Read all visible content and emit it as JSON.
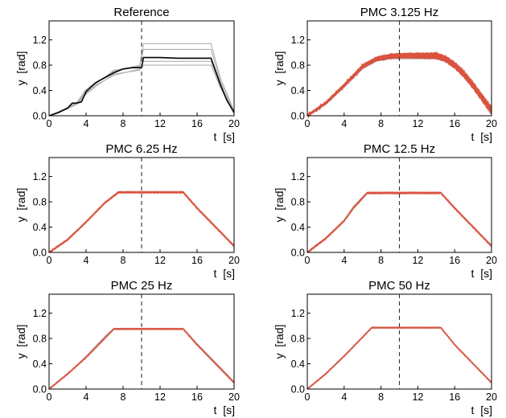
{
  "chart_data": [
    {
      "type": "line",
      "title": "Reference",
      "xlabel": "t  [s]",
      "ylabel": "y  [rad]",
      "xlim": [
        0,
        20
      ],
      "ylim": [
        0,
        1.5
      ],
      "xticks": [
        "0",
        "4",
        "8",
        "12",
        "16",
        "20"
      ],
      "yticks": [
        "0.0",
        "0.4",
        "0.8",
        "1.2"
      ],
      "vline_x": 10,
      "grid": false,
      "series": [
        {
          "role": "main",
          "color": "#000000",
          "x": [
            0,
            1,
            2,
            2.5,
            3,
            3.5,
            4,
            4.5,
            5,
            6,
            7,
            8,
            9,
            9.8,
            10,
            10.2,
            12,
            14,
            16,
            17.5,
            18.5,
            19.2,
            20
          ],
          "y": [
            0,
            0.05,
            0.12,
            0.2,
            0.2,
            0.22,
            0.38,
            0.45,
            0.52,
            0.6,
            0.68,
            0.74,
            0.76,
            0.76,
            0.76,
            0.92,
            0.92,
            0.91,
            0.91,
            0.91,
            0.5,
            0.25,
            0.05
          ]
        },
        {
          "role": "background",
          "color": "#b0b0b0",
          "x": [
            0,
            2,
            3,
            4,
            5,
            7,
            9.8,
            10.2,
            17.5,
            18.5,
            20
          ],
          "y": [
            0,
            0.13,
            0.21,
            0.42,
            0.52,
            0.7,
            0.8,
            1.14,
            1.14,
            0.6,
            0.08
          ]
        },
        {
          "role": "background",
          "color": "#b0b0b0",
          "x": [
            0,
            2,
            3,
            4,
            5,
            7,
            9.8,
            10.2,
            17.5,
            18.5,
            20
          ],
          "y": [
            0,
            0.11,
            0.18,
            0.34,
            0.46,
            0.66,
            0.72,
            0.8,
            0.8,
            0.45,
            0.04
          ]
        },
        {
          "role": "background",
          "color": "#b0b0b0",
          "x": [
            0,
            2,
            3,
            4,
            5,
            7,
            9.8,
            10.2,
            17.5,
            18.5,
            20
          ],
          "y": [
            0,
            0.12,
            0.2,
            0.4,
            0.5,
            0.72,
            0.78,
            1.05,
            1.05,
            0.55,
            0.06
          ]
        },
        {
          "role": "background",
          "color": "#b0b0b0",
          "x": [
            0,
            2,
            3,
            4,
            5,
            7,
            9.8,
            10.2,
            17.5,
            18.5,
            20
          ],
          "y": [
            0,
            0.12,
            0.19,
            0.36,
            0.48,
            0.64,
            0.74,
            0.86,
            0.86,
            0.48,
            0.05
          ]
        }
      ]
    },
    {
      "type": "line",
      "title": "PMC 3.125 Hz",
      "xlabel": "t  [s]",
      "ylabel": "y  [rad]",
      "xlim": [
        0,
        20
      ],
      "ylim": [
        0,
        1.5
      ],
      "xticks": [
        "0",
        "4",
        "8",
        "12",
        "16",
        "20"
      ],
      "yticks": [
        "0.0",
        "0.4",
        "0.8",
        "1.2"
      ],
      "vline_x": 10,
      "grid": false,
      "series": [
        {
          "role": "main",
          "color": "#d9533f",
          "x": [
            0,
            2,
            4,
            6,
            7.5,
            9,
            10,
            12,
            14,
            15,
            16,
            17,
            18,
            19,
            20
          ],
          "y": [
            0,
            0.2,
            0.48,
            0.78,
            0.9,
            0.94,
            0.95,
            0.95,
            0.95,
            0.9,
            0.8,
            0.66,
            0.48,
            0.28,
            0.08
          ],
          "oscillation": [
            0.02,
            0.07
          ]
        },
        {
          "role": "background",
          "color": "#b0b0b0",
          "x": [
            0,
            2,
            4,
            6,
            7.5,
            9,
            10,
            12,
            14,
            15,
            16,
            17,
            18,
            19,
            20
          ],
          "y": [
            0,
            0.18,
            0.45,
            0.74,
            0.86,
            0.9,
            0.9,
            0.9,
            0.9,
            0.86,
            0.76,
            0.63,
            0.46,
            0.26,
            0.06
          ]
        }
      ]
    },
    {
      "type": "line",
      "title": "PMC 6.25 Hz",
      "xlabel": "t  [s]",
      "ylabel": "y  [rad]",
      "xlim": [
        0,
        20
      ],
      "ylim": [
        0,
        1.5
      ],
      "xticks": [
        "0",
        "4",
        "8",
        "12",
        "16",
        "20"
      ],
      "yticks": [
        "0.0",
        "0.4",
        "0.8",
        "1.2"
      ],
      "vline_x": 10,
      "grid": false,
      "series": [
        {
          "role": "main",
          "color": "#d9533f",
          "x": [
            0,
            2,
            4,
            6,
            7.5,
            10,
            14.5,
            16,
            18,
            20
          ],
          "y": [
            0,
            0.2,
            0.48,
            0.78,
            0.95,
            0.95,
            0.95,
            0.7,
            0.4,
            0.1
          ],
          "oscillation": [
            0.008,
            0.008
          ]
        },
        {
          "role": "background",
          "color": "#b0b0b0",
          "x": [
            0,
            2,
            4,
            6,
            7.5,
            10,
            14.5,
            16,
            18,
            20
          ],
          "y": [
            0,
            0.21,
            0.49,
            0.79,
            0.96,
            0.96,
            0.96,
            0.71,
            0.41,
            0.11
          ]
        }
      ]
    },
    {
      "type": "line",
      "title": "PMC 12.5 Hz",
      "xlabel": "t  [s]",
      "ylabel": "y  [rad]",
      "xlim": [
        0,
        20
      ],
      "ylim": [
        0,
        1.5
      ],
      "xticks": [
        "0",
        "4",
        "8",
        "12",
        "16",
        "20"
      ],
      "yticks": [
        "0.0",
        "0.4",
        "0.8",
        "1.2"
      ],
      "vline_x": 10,
      "grid": false,
      "series": [
        {
          "role": "main",
          "color": "#d9533f",
          "x": [
            0,
            2,
            4,
            5,
            6.5,
            10,
            14.5,
            16,
            18,
            20
          ],
          "y": [
            0,
            0.22,
            0.5,
            0.7,
            0.94,
            0.94,
            0.94,
            0.7,
            0.4,
            0.1
          ],
          "oscillation": [
            0.008,
            0.008
          ]
        },
        {
          "role": "background",
          "color": "#b0b0b0",
          "x": [
            0,
            2,
            4,
            5,
            6.5,
            10,
            14.5,
            16,
            18,
            20
          ],
          "y": [
            0,
            0.23,
            0.51,
            0.73,
            0.95,
            0.95,
            0.95,
            0.71,
            0.41,
            0.11
          ]
        }
      ]
    },
    {
      "type": "line",
      "title": "PMC 25 Hz",
      "xlabel": "t  [s]",
      "ylabel": "y  [rad]",
      "xlim": [
        0,
        20
      ],
      "ylim": [
        0,
        1.5
      ],
      "xticks": [
        "0",
        "4",
        "8",
        "12",
        "16",
        "20"
      ],
      "yticks": [
        "0.0",
        "0.4",
        "0.8",
        "1.2"
      ],
      "vline_x": 10,
      "grid": false,
      "series": [
        {
          "role": "main",
          "color": "#d9533f",
          "x": [
            0,
            2,
            4,
            6,
            7,
            10,
            14.5,
            16,
            18,
            20
          ],
          "y": [
            0,
            0.24,
            0.5,
            0.8,
            0.95,
            0.95,
            0.95,
            0.7,
            0.4,
            0.1
          ],
          "oscillation": [
            0.006,
            0.006
          ]
        },
        {
          "role": "background",
          "color": "#b0b0b0",
          "x": [
            0,
            2,
            4,
            6,
            7,
            10,
            14.5,
            16,
            18,
            20
          ],
          "y": [
            0,
            0.23,
            0.52,
            0.83,
            0.96,
            0.96,
            0.96,
            0.72,
            0.42,
            0.12
          ]
        }
      ]
    },
    {
      "type": "line",
      "title": "PMC 50  Hz",
      "xlabel": "t  [s]",
      "ylabel": "y  [rad]",
      "xlim": [
        0,
        20
      ],
      "ylim": [
        0,
        1.5
      ],
      "xticks": [
        "0",
        "4",
        "8",
        "12",
        "16",
        "20"
      ],
      "yticks": [
        "0.0",
        "0.4",
        "0.8",
        "1.2"
      ],
      "vline_x": 10,
      "grid": false,
      "series": [
        {
          "role": "main",
          "color": "#d9533f",
          "x": [
            0,
            2,
            4,
            6,
            7,
            10,
            14.5,
            16,
            18,
            20
          ],
          "y": [
            0,
            0.24,
            0.52,
            0.82,
            0.97,
            0.97,
            0.97,
            0.7,
            0.4,
            0.1
          ],
          "oscillation": [
            0.005,
            0.005
          ]
        },
        {
          "role": "background",
          "color": "#b0b0b0",
          "x": [
            0,
            2,
            4,
            6,
            7,
            10,
            14.5,
            16,
            18,
            20
          ],
          "y": [
            0,
            0.25,
            0.53,
            0.83,
            0.98,
            0.98,
            0.98,
            0.71,
            0.41,
            0.11
          ]
        }
      ]
    }
  ]
}
